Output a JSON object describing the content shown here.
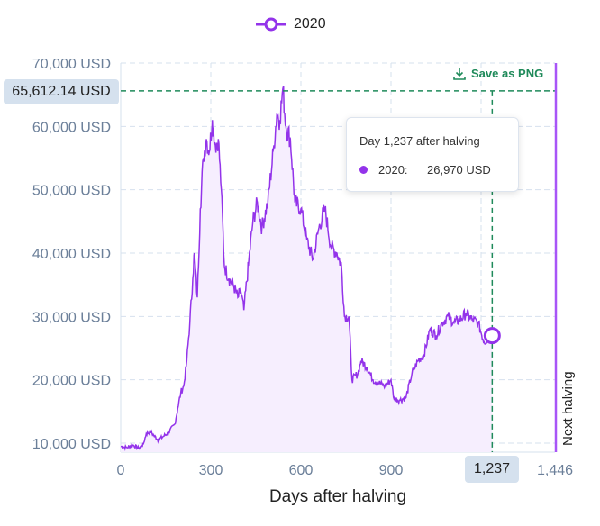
{
  "legend": {
    "label": "2020",
    "color": "#9333ea"
  },
  "toolbar": {
    "save_label": "Save as PNG",
    "save_icon": "download-icon"
  },
  "tooltip": {
    "title": "Day 1,237 after halving",
    "series": "2020:",
    "value": "26,970 USD"
  },
  "crosshair": {
    "y_label": "65,612.14 USD",
    "x_label": "1,237",
    "y_value": 65612.14,
    "x_value": 1237,
    "color": "#1f8a5a"
  },
  "annotation": {
    "label": "Next halving",
    "x": 1446
  },
  "chart_data": {
    "type": "area",
    "xlabel": "Days after halving",
    "ylabel": "",
    "xlim": [
      0,
      1446
    ],
    "ylim": [
      8800,
      70000
    ],
    "x_ticks": [
      "0",
      "300",
      "600",
      "900",
      "1,446"
    ],
    "x_tick_values": [
      0,
      300,
      600,
      900,
      1446
    ],
    "y_ticks": [
      "10,000 USD",
      "20,000 USD",
      "30,000 USD",
      "40,000 USD",
      "50,000 USD",
      "60,000 USD",
      "70,000 USD"
    ],
    "y_tick_values": [
      10000,
      20000,
      30000,
      40000,
      50000,
      60000,
      70000
    ],
    "grid": true,
    "legend_position": "top",
    "series": [
      {
        "name": "2020",
        "color": "#9333ea",
        "points": [
          [
            0,
            9500
          ],
          [
            20,
            9300
          ],
          [
            40,
            9700
          ],
          [
            60,
            9200
          ],
          [
            75,
            9800
          ],
          [
            85,
            11500
          ],
          [
            100,
            11800
          ],
          [
            110,
            11200
          ],
          [
            125,
            10500
          ],
          [
            140,
            11000
          ],
          [
            160,
            11700
          ],
          [
            180,
            13000
          ],
          [
            190,
            15500
          ],
          [
            200,
            18000
          ],
          [
            210,
            19000
          ],
          [
            220,
            23000
          ],
          [
            230,
            29000
          ],
          [
            240,
            36000
          ],
          [
            245,
            40000
          ],
          [
            255,
            33000
          ],
          [
            265,
            47000
          ],
          [
            275,
            55000
          ],
          [
            285,
            58000
          ],
          [
            295,
            56000
          ],
          [
            305,
            61000
          ],
          [
            315,
            57000
          ],
          [
            325,
            58000
          ],
          [
            335,
            50000
          ],
          [
            345,
            38000
          ],
          [
            360,
            36000
          ],
          [
            375,
            35000
          ],
          [
            390,
            33000
          ],
          [
            400,
            34000
          ],
          [
            410,
            31000
          ],
          [
            425,
            38000
          ],
          [
            440,
            45000
          ],
          [
            455,
            48000
          ],
          [
            470,
            44000
          ],
          [
            490,
            48000
          ],
          [
            510,
            57000
          ],
          [
            520,
            62000
          ],
          [
            530,
            61000
          ],
          [
            540,
            66000
          ],
          [
            550,
            60000
          ],
          [
            565,
            58000
          ],
          [
            580,
            48000
          ],
          [
            600,
            47000
          ],
          [
            620,
            42000
          ],
          [
            640,
            39000
          ],
          [
            660,
            44000
          ],
          [
            680,
            47000
          ],
          [
            700,
            41000
          ],
          [
            720,
            40000
          ],
          [
            735,
            38000
          ],
          [
            745,
            30000
          ],
          [
            760,
            30000
          ],
          [
            770,
            20000
          ],
          [
            790,
            21000
          ],
          [
            800,
            23000
          ],
          [
            820,
            22000
          ],
          [
            840,
            20000
          ],
          [
            860,
            19500
          ],
          [
            880,
            19000
          ],
          [
            900,
            20000
          ],
          [
            910,
            17000
          ],
          [
            930,
            16800
          ],
          [
            950,
            17200
          ],
          [
            970,
            21000
          ],
          [
            990,
            23000
          ],
          [
            1010,
            24000
          ],
          [
            1030,
            28000
          ],
          [
            1050,
            27000
          ],
          [
            1070,
            29000
          ],
          [
            1090,
            30000
          ],
          [
            1110,
            29000
          ],
          [
            1130,
            29500
          ],
          [
            1150,
            30500
          ],
          [
            1170,
            29500
          ],
          [
            1190,
            29000
          ],
          [
            1210,
            26000
          ],
          [
            1237,
            26970
          ]
        ]
      }
    ]
  }
}
